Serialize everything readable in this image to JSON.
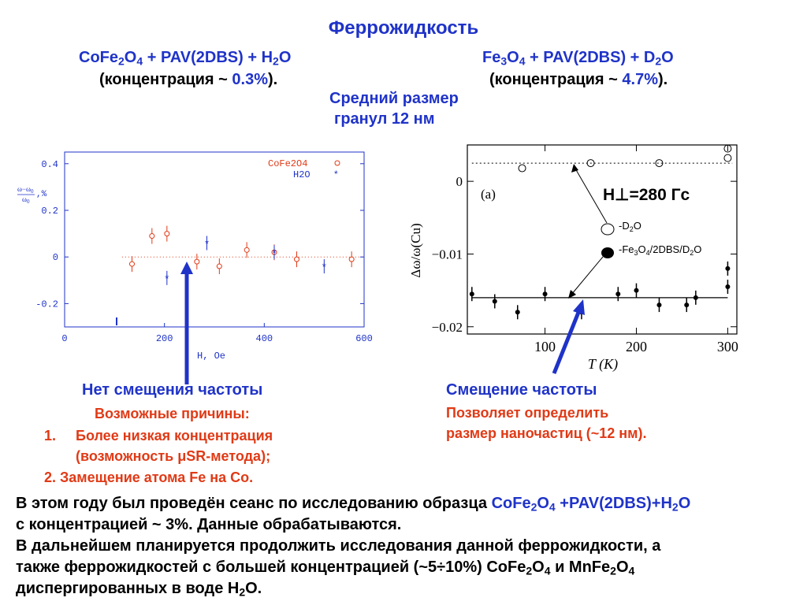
{
  "title": "Феррожидкость",
  "left_header": {
    "formula_parts": [
      "CoFe",
      "2",
      "O",
      "4",
      " + PAV(2DBS) + H",
      "2",
      "O"
    ],
    "conc_prefix": "(концентрация ~ ",
    "conc_value": "0.3%",
    "conc_suffix": ")."
  },
  "right_header": {
    "formula_parts": [
      "Fe",
      "3",
      "O",
      "4",
      " + PAV(2DBS) + D",
      "2",
      "O"
    ],
    "conc_prefix": "(концентрация ~ ",
    "conc_value": "4.7%",
    "conc_suffix": ")."
  },
  "middle_note": {
    "line1": "Средний размер",
    "line2": "гранул 12 нм"
  },
  "left_chart": {
    "y_ticks": [
      "0.4",
      "0.2",
      "0",
      "-0.2"
    ],
    "x_ticks": [
      "0",
      "200",
      "400",
      "600"
    ],
    "y_label_top": "ω−ω",
    "y_label_sub": "0",
    "y_label_bottom": "ω",
    "y_label_suffix": ",%",
    "x_label": "H, Oe",
    "legend": [
      {
        "label": "CoFe2O4",
        "marker": "o",
        "color": "#e03a16"
      },
      {
        "label": "H2O",
        "marker": "*",
        "color": "#1f33c8"
      }
    ]
  },
  "chart_data": {
    "type": "scatter",
    "xlabel": "H, Oe",
    "xlim": [
      0,
      600
    ],
    "ylim": [
      -0.3,
      0.45
    ],
    "series": [
      {
        "name": "CoFe2O4",
        "x": [
          135,
          175,
          205,
          265,
          310,
          365,
          420,
          465,
          575
        ],
        "y": [
          -0.03,
          0.09,
          0.1,
          -0.02,
          -0.04,
          0.03,
          0.02,
          -0.01,
          -0.01
        ]
      },
      {
        "name": "H2O",
        "x": [
          205,
          285,
          420,
          520
        ],
        "y": [
          -0.09,
          0.06,
          0.02,
          -0.04
        ]
      }
    ]
  },
  "right_chart": {
    "y_ticks": [
      "0",
      "−0.01",
      "−0.02"
    ],
    "x_ticks": [
      "100",
      "200",
      "300"
    ],
    "y_label": "Δω/ω(Cu)",
    "x_label": "T  (K)",
    "panel_label": "(a)",
    "field_label": "H⊥=280 Гс",
    "legend_d2o_parts": [
      "-D",
      "2",
      "O"
    ],
    "legend_fe_parts": [
      "-Fe",
      "3",
      "O",
      "4",
      "/2DBS/D",
      "2",
      "O"
    ]
  },
  "chart_data_right": {
    "type": "scatter",
    "xlabel": "T (K)",
    "ylabel": "Δω/ω(Cu)",
    "xlim": [
      15,
      310
    ],
    "ylim": [
      -0.021,
      0.005
    ],
    "series": [
      {
        "name": "D2O",
        "x": [
          75,
          150,
          225,
          300,
          300
        ],
        "y": [
          0.0018,
          0.0025,
          0.0025,
          0.0032,
          0.0045
        ]
      },
      {
        "name": "Fe3O4/2DBS/D2O",
        "x": [
          20,
          45,
          70,
          100,
          140,
          180,
          200,
          225,
          255,
          265,
          300,
          300
        ],
        "y": [
          -0.0155,
          -0.0165,
          -0.018,
          -0.0155,
          -0.018,
          -0.0155,
          -0.015,
          -0.017,
          -0.017,
          -0.016,
          -0.0145,
          -0.012
        ]
      }
    ]
  },
  "left_caption": {
    "heading": "Нет смещения частоты",
    "subheading": "Возможные причины:",
    "item1_num": "1.",
    "item1_line1": "Более низкая концентрация",
    "item1_line2": "(возможность μSR-метода);",
    "item2": "2. Замещение атома Fe на Co."
  },
  "right_caption": {
    "heading": "Смещение частоты",
    "line1": "Позволяет определить",
    "line2": "размер наночастиц (~12 нм)."
  },
  "bottom": {
    "p1_text": "В этом году был проведён сеанс по исследованию образца ",
    "p1_formula_parts": [
      "CoFe",
      "2",
      "O",
      "4",
      " +PAV(2DBS)+H",
      "2",
      "O"
    ],
    "p1_line2": "с  концентрацией ~ 3%. Данные обрабатываются.",
    "p2_line1": "В дальнейшем планируется продолжить исследования данной феррожидкости, а",
    "p2_line2_parts": [
      "также феррожидкостей с большей концентрацией (~5÷10%) CoFe",
      "2",
      "O",
      "4",
      " и MnFe",
      "2",
      "O",
      "4"
    ],
    "p2_line3_parts": [
      "диспергированных в воде H",
      "2",
      "O."
    ]
  }
}
